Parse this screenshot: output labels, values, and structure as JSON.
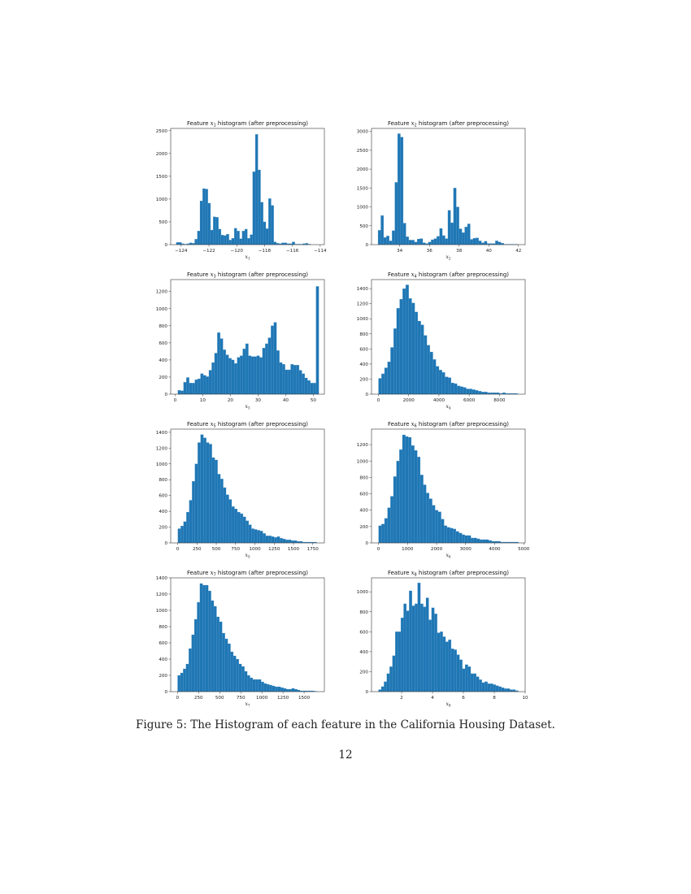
{
  "figure": {
    "caption": "Figure 5: The Histogram of each feature in the California Housing Dataset.",
    "page_number": "12",
    "bar_color": "#1f77b4",
    "bar_edge_color": "#5a9bd0"
  },
  "chart_data": [
    {
      "type": "bar",
      "title": "Feature x1 histogram (after preprocessing)",
      "xlabel": "x1",
      "ylabel": "",
      "xlim": [
        -124.75,
        -113.7
      ],
      "ylim": [
        0,
        2550
      ],
      "xticks": [
        -124,
        -122,
        -120,
        -118,
        -116,
        -114
      ],
      "xtick_labels": [
        "−124",
        "−122",
        "−120",
        "−118",
        "−116",
        "−114"
      ],
      "yticks": [
        0,
        500,
        1000,
        1500,
        2000,
        2500
      ],
      "bin_start": -124.35,
      "bin_end": -114.31,
      "values": [
        50,
        50,
        20,
        10,
        20,
        40,
        30,
        120,
        300,
        960,
        1230,
        1220,
        910,
        320,
        610,
        600,
        340,
        210,
        200,
        230,
        100,
        140,
        360,
        300,
        130,
        300,
        340,
        140,
        220,
        1600,
        2420,
        1640,
        930,
        500,
        350,
        1010,
        860,
        60,
        30,
        20,
        40,
        40,
        20,
        20,
        60,
        10,
        10,
        10,
        20,
        30,
        10,
        0,
        0
      ]
    },
    {
      "type": "bar",
      "title": "Feature x2 histogram (after preprocessing)",
      "xlabel": "x2",
      "ylabel": "",
      "xlim": [
        32.1,
        42.45
      ],
      "ylim": [
        0,
        3080
      ],
      "xticks": [
        34,
        36,
        38,
        40,
        42
      ],
      "xtick_labels": [
        "34",
        "36",
        "38",
        "40",
        "42"
      ],
      "yticks": [
        0,
        500,
        1000,
        1500,
        2000,
        2500,
        3000
      ],
      "bin_start": 32.54,
      "bin_end": 41.95,
      "values": [
        380,
        770,
        190,
        230,
        100,
        370,
        1650,
        2940,
        2850,
        570,
        210,
        120,
        120,
        70,
        150,
        160,
        50,
        30,
        70,
        130,
        160,
        220,
        430,
        240,
        160,
        910,
        580,
        1500,
        1000,
        420,
        320,
        470,
        550,
        140,
        170,
        180,
        100,
        50,
        90,
        30,
        30,
        30,
        100,
        70,
        40,
        10,
        10,
        10,
        10,
        10
      ]
    },
    {
      "type": "bar",
      "title": "Feature x3 histogram (after preprocessing)",
      "xlabel": "x3",
      "ylabel": "",
      "xlim": [
        -1.6,
        54.0
      ],
      "ylim": [
        0,
        1340
      ],
      "xticks": [
        0,
        10,
        20,
        30,
        40,
        50
      ],
      "xtick_labels": [
        "0",
        "10",
        "20",
        "30",
        "40",
        "50"
      ],
      "yticks": [
        0,
        200,
        400,
        600,
        800,
        1000,
        1200
      ],
      "bin_start": 1.0,
      "bin_end": 52.0,
      "values": [
        45,
        40,
        140,
        195,
        130,
        130,
        170,
        180,
        240,
        220,
        205,
        280,
        370,
        480,
        720,
        650,
        520,
        460,
        420,
        400,
        360,
        430,
        450,
        530,
        590,
        450,
        440,
        440,
        450,
        430,
        540,
        590,
        660,
        800,
        840,
        510,
        370,
        350,
        285,
        285,
        350,
        340,
        340,
        280,
        240,
        190,
        160,
        130,
        130,
        1260
      ]
    },
    {
      "type": "bar",
      "title": "Feature x4 histogram (after preprocessing)",
      "xlabel": "x4",
      "ylabel": "",
      "xlim": [
        -460,
        9700
      ],
      "ylim": [
        0,
        1520
      ],
      "xticks": [
        0,
        2000,
        4000,
        6000,
        8000
      ],
      "xtick_labels": [
        "0",
        "2000",
        "4000",
        "6000",
        "8000"
      ],
      "yticks": [
        0,
        200,
        400,
        600,
        800,
        1000,
        1200,
        1400
      ],
      "bin_start": 0,
      "bin_end": 9200,
      "values": [
        210,
        270,
        350,
        430,
        620,
        870,
        1140,
        1260,
        1400,
        1450,
        1270,
        1210,
        1090,
        970,
        920,
        780,
        650,
        560,
        460,
        370,
        320,
        290,
        230,
        220,
        150,
        140,
        110,
        100,
        90,
        70,
        70,
        60,
        50,
        40,
        30,
        30,
        20,
        20,
        20,
        20,
        10,
        20,
        10,
        10,
        10,
        10
      ]
    },
    {
      "type": "bar",
      "title": "Feature x5 histogram (after preprocessing)",
      "xlabel": "x5",
      "ylabel": "",
      "xlim": [
        -90,
        1900
      ],
      "ylim": [
        0,
        1440
      ],
      "xticks": [
        0,
        250,
        500,
        750,
        1000,
        1250,
        1500,
        1750
      ],
      "xtick_labels": [
        "0",
        "250",
        "500",
        "750",
        "1000",
        "1250",
        "1500",
        "1750"
      ],
      "yticks": [
        0,
        200,
        400,
        600,
        800,
        1000,
        1200,
        1400
      ],
      "bin_start": 3,
      "bin_end": 1800,
      "values": [
        180,
        215,
        270,
        390,
        540,
        780,
        1000,
        1270,
        1370,
        1330,
        1270,
        1250,
        1080,
        1050,
        870,
        810,
        700,
        610,
        550,
        460,
        430,
        390,
        370,
        330,
        280,
        230,
        180,
        170,
        160,
        150,
        120,
        90,
        90,
        80,
        70,
        80,
        60,
        50,
        40,
        40,
        30,
        30,
        20,
        20,
        10,
        10,
        10,
        10,
        10
      ]
    },
    {
      "type": "bar",
      "title": "Feature x6 histogram (after preprocessing)",
      "xlabel": "x6",
      "ylabel": "",
      "xlim": [
        -240,
        5050
      ],
      "ylim": [
        0,
        1390
      ],
      "xticks": [
        0,
        1000,
        2000,
        3000,
        4000,
        5000
      ],
      "xtick_labels": [
        "0",
        "1000",
        "2000",
        "3000",
        "4000",
        "5000"
      ],
      "yticks": [
        0,
        200,
        400,
        600,
        800,
        1000,
        1200
      ],
      "bin_start": 3,
      "bin_end": 4820,
      "values": [
        210,
        230,
        300,
        430,
        570,
        810,
        1000,
        1140,
        1320,
        1300,
        1290,
        1190,
        1130,
        1050,
        830,
        710,
        610,
        540,
        460,
        400,
        380,
        290,
        210,
        190,
        180,
        170,
        140,
        120,
        100,
        90,
        90,
        60,
        60,
        50,
        40,
        40,
        40,
        30,
        20,
        20,
        20,
        10,
        10,
        10,
        10,
        10,
        10
      ]
    },
    {
      "type": "bar",
      "title": "Feature x7 histogram (after preprocessing)",
      "xlabel": "x7",
      "ylabel": "",
      "xlim": [
        -80,
        1740
      ],
      "ylim": [
        0,
        1400
      ],
      "xticks": [
        0,
        250,
        500,
        750,
        1000,
        1250,
        1500
      ],
      "xtick_labels": [
        "0",
        "250",
        "500",
        "750",
        "1000",
        "1250",
        "1500"
      ],
      "yticks": [
        0,
        200,
        400,
        600,
        800,
        1000,
        1200,
        1400
      ],
      "bin_start": 2,
      "bin_end": 1650,
      "values": [
        200,
        230,
        280,
        340,
        530,
        700,
        890,
        1100,
        1330,
        1310,
        1310,
        1240,
        1120,
        1050,
        920,
        860,
        720,
        650,
        590,
        490,
        440,
        400,
        340,
        310,
        250,
        200,
        170,
        150,
        150,
        150,
        120,
        100,
        90,
        80,
        70,
        60,
        60,
        50,
        40,
        30,
        30,
        40,
        30,
        20,
        10,
        10,
        10,
        10,
        10,
        5
      ]
    },
    {
      "type": "bar",
      "title": "Feature x8 histogram (after preprocessing)",
      "xlabel": "x8",
      "ylabel": "",
      "xlim": [
        0.05,
        10.0
      ],
      "ylim": [
        0,
        1140
      ],
      "xticks": [
        2,
        4,
        6,
        8,
        10
      ],
      "xtick_labels": [
        "2",
        "4",
        "6",
        "8",
        "10"
      ],
      "yticks": [
        0,
        200,
        400,
        600,
        800,
        1000
      ],
      "bin_start": 0.5,
      "bin_end": 9.55,
      "values": [
        20,
        50,
        100,
        180,
        250,
        360,
        600,
        600,
        740,
        880,
        810,
        1010,
        860,
        880,
        1090,
        880,
        850,
        940,
        720,
        840,
        780,
        590,
        600,
        550,
        500,
        520,
        430,
        420,
        370,
        320,
        230,
        270,
        250,
        180,
        180,
        150,
        120,
        90,
        100,
        80,
        80,
        70,
        60,
        50,
        40,
        30,
        30,
        20,
        20,
        10
      ]
    }
  ],
  "panels": [
    {
      "title_prefix": "Feature ",
      "var": "x",
      "sub": "1",
      "title_suffix": " histogram (after preprocessing)"
    },
    {
      "title_prefix": "Feature ",
      "var": "x",
      "sub": "2",
      "title_suffix": " histogram (after preprocessing)"
    },
    {
      "title_prefix": "Feature ",
      "var": "x",
      "sub": "3",
      "title_suffix": " histogram (after preprocessing)"
    },
    {
      "title_prefix": "Feature ",
      "var": "x",
      "sub": "4",
      "title_suffix": " histogram (after preprocessing)"
    },
    {
      "title_prefix": "Feature ",
      "var": "x",
      "sub": "5",
      "title_suffix": " histogram (after preprocessing)"
    },
    {
      "title_prefix": "Feature ",
      "var": "x",
      "sub": "6",
      "title_suffix": " histogram (after preprocessing)"
    },
    {
      "title_prefix": "Feature ",
      "var": "x",
      "sub": "7",
      "title_suffix": " histogram (after preprocessing)"
    },
    {
      "title_prefix": "Feature ",
      "var": "x",
      "sub": "8",
      "title_suffix": " histogram (after preprocessing)"
    }
  ]
}
